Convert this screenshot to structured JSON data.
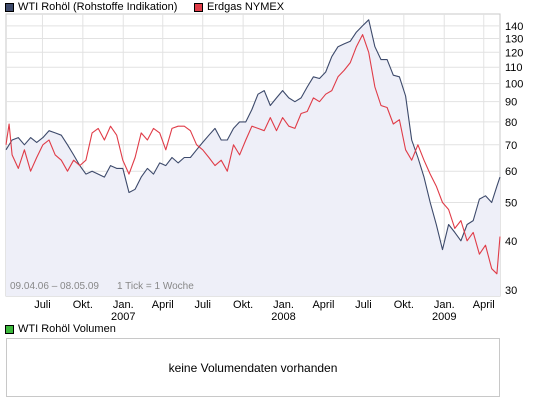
{
  "legend": {
    "series1": {
      "label": "WTI Rohöl (Rohstoffe Indikation)",
      "color": "#3d4a6b"
    },
    "series2": {
      "label": "Erdgas NYMEX",
      "color": "#e03c48"
    }
  },
  "date_range": "09.04.06 – 08.05.09",
  "tick_note": "1 Tick = 1 Woche",
  "volume": {
    "legend_label": "WTI Rohöl Volumen",
    "legend_color": "#3cb83c",
    "message": "keine Volumendaten vorhanden"
  },
  "chart_data": {
    "type": "line",
    "scale": "log",
    "x_unit": "week",
    "x_start": "2006-04-09",
    "x_end": "2009-05-08",
    "ylim": [
      29,
      150
    ],
    "y_ticks": [
      30,
      40,
      50,
      60,
      70,
      80,
      90,
      100,
      110,
      120,
      130,
      140
    ],
    "grid": true,
    "legend_position": "top-left",
    "x_ticks": [
      {
        "date": "2006-07-01",
        "label": "Juli"
      },
      {
        "date": "2006-10-01",
        "label": "Okt."
      },
      {
        "date": "2007-01-01",
        "label": "Jan."
      },
      {
        "date": "2007-04-01",
        "label": "April"
      },
      {
        "date": "2007-07-01",
        "label": "Juli"
      },
      {
        "date": "2007-10-01",
        "label": "Okt."
      },
      {
        "date": "2008-01-01",
        "label": "Jan."
      },
      {
        "date": "2008-04-01",
        "label": "April"
      },
      {
        "date": "2008-07-01",
        "label": "Juli"
      },
      {
        "date": "2008-10-01",
        "label": "Okt."
      },
      {
        "date": "2009-01-01",
        "label": "Jan."
      },
      {
        "date": "2009-04-01",
        "label": "April"
      }
    ],
    "year_labels": [
      {
        "date": "2007-01-01",
        "label": "2007"
      },
      {
        "date": "2008-01-01",
        "label": "2008"
      },
      {
        "date": "2009-01-01",
        "label": "2009"
      }
    ],
    "series": [
      {
        "name": "WTI Rohöl (Rohstoffe Indikation)",
        "color": "#3d4a6b",
        "fill": true,
        "points": [
          [
            "2006-04-09",
            68
          ],
          [
            "2006-04-23",
            72
          ],
          [
            "2006-05-07",
            73
          ],
          [
            "2006-05-21",
            70
          ],
          [
            "2006-06-04",
            73
          ],
          [
            "2006-06-18",
            71
          ],
          [
            "2006-07-02",
            73
          ],
          [
            "2006-07-16",
            76
          ],
          [
            "2006-07-30",
            75
          ],
          [
            "2006-08-13",
            74
          ],
          [
            "2006-08-27",
            70
          ],
          [
            "2006-09-10",
            66
          ],
          [
            "2006-09-24",
            62
          ],
          [
            "2006-10-08",
            59
          ],
          [
            "2006-10-22",
            60
          ],
          [
            "2006-11-05",
            59
          ],
          [
            "2006-11-19",
            58
          ],
          [
            "2006-12-03",
            62
          ],
          [
            "2006-12-17",
            61
          ],
          [
            "2006-12-31",
            61
          ],
          [
            "2007-01-14",
            53
          ],
          [
            "2007-01-28",
            54
          ],
          [
            "2007-02-11",
            58
          ],
          [
            "2007-02-25",
            61
          ],
          [
            "2007-03-11",
            59
          ],
          [
            "2007-03-25",
            63
          ],
          [
            "2007-04-08",
            62
          ],
          [
            "2007-04-22",
            65
          ],
          [
            "2007-05-06",
            63
          ],
          [
            "2007-05-20",
            65
          ],
          [
            "2007-06-03",
            65
          ],
          [
            "2007-06-17",
            68
          ],
          [
            "2007-07-01",
            71
          ],
          [
            "2007-07-15",
            74
          ],
          [
            "2007-07-29",
            77
          ],
          [
            "2007-08-12",
            72
          ],
          [
            "2007-08-26",
            72
          ],
          [
            "2007-09-09",
            77
          ],
          [
            "2007-09-23",
            80
          ],
          [
            "2007-10-07",
            80
          ],
          [
            "2007-10-21",
            86
          ],
          [
            "2007-11-04",
            94
          ],
          [
            "2007-11-18",
            96
          ],
          [
            "2007-12-02",
            88
          ],
          [
            "2007-12-16",
            92
          ],
          [
            "2007-12-30",
            96
          ],
          [
            "2008-01-13",
            92
          ],
          [
            "2008-01-27",
            90
          ],
          [
            "2008-02-10",
            92
          ],
          [
            "2008-02-24",
            98
          ],
          [
            "2008-03-09",
            104
          ],
          [
            "2008-03-23",
            103
          ],
          [
            "2008-04-06",
            107
          ],
          [
            "2008-04-20",
            117
          ],
          [
            "2008-05-04",
            124
          ],
          [
            "2008-05-18",
            126
          ],
          [
            "2008-06-01",
            128
          ],
          [
            "2008-06-15",
            135
          ],
          [
            "2008-06-29",
            140
          ],
          [
            "2008-07-13",
            145
          ],
          [
            "2008-07-27",
            124
          ],
          [
            "2008-08-10",
            115
          ],
          [
            "2008-08-24",
            115
          ],
          [
            "2008-09-07",
            105
          ],
          [
            "2008-09-21",
            104
          ],
          [
            "2008-10-05",
            93
          ],
          [
            "2008-10-19",
            72
          ],
          [
            "2008-11-02",
            65
          ],
          [
            "2008-11-16",
            58
          ],
          [
            "2008-11-30",
            50
          ],
          [
            "2008-12-14",
            44
          ],
          [
            "2008-12-28",
            38
          ],
          [
            "2009-01-11",
            44
          ],
          [
            "2009-01-25",
            42
          ],
          [
            "2009-02-08",
            40
          ],
          [
            "2009-02-22",
            44
          ],
          [
            "2009-03-08",
            45
          ],
          [
            "2009-03-22",
            51
          ],
          [
            "2009-04-05",
            52
          ],
          [
            "2009-04-19",
            50
          ],
          [
            "2009-05-01",
            55
          ],
          [
            "2009-05-08",
            58
          ]
        ]
      },
      {
        "name": "Erdgas NYMEX",
        "color": "#e03c48",
        "fill": false,
        "points": [
          [
            "2006-04-09",
            70
          ],
          [
            "2006-04-16",
            79
          ],
          [
            "2006-04-23",
            66
          ],
          [
            "2006-05-07",
            61
          ],
          [
            "2006-05-21",
            68
          ],
          [
            "2006-06-04",
            60
          ],
          [
            "2006-06-18",
            65
          ],
          [
            "2006-07-02",
            70
          ],
          [
            "2006-07-16",
            72
          ],
          [
            "2006-07-30",
            66
          ],
          [
            "2006-08-13",
            64
          ],
          [
            "2006-08-27",
            60
          ],
          [
            "2006-09-10",
            64
          ],
          [
            "2006-09-24",
            62
          ],
          [
            "2006-10-08",
            64
          ],
          [
            "2006-10-22",
            75
          ],
          [
            "2006-11-05",
            77
          ],
          [
            "2006-11-19",
            72
          ],
          [
            "2006-12-03",
            78
          ],
          [
            "2006-12-17",
            74
          ],
          [
            "2006-12-31",
            64
          ],
          [
            "2007-01-14",
            59
          ],
          [
            "2007-01-28",
            65
          ],
          [
            "2007-02-11",
            75
          ],
          [
            "2007-02-25",
            72
          ],
          [
            "2007-03-11",
            77
          ],
          [
            "2007-03-25",
            75
          ],
          [
            "2007-04-08",
            68
          ],
          [
            "2007-04-22",
            77
          ],
          [
            "2007-05-06",
            78
          ],
          [
            "2007-05-20",
            78
          ],
          [
            "2007-06-03",
            76
          ],
          [
            "2007-06-17",
            70
          ],
          [
            "2007-07-01",
            68
          ],
          [
            "2007-07-15",
            65
          ],
          [
            "2007-07-29",
            62
          ],
          [
            "2007-08-12",
            64
          ],
          [
            "2007-08-26",
            60
          ],
          [
            "2007-09-09",
            70
          ],
          [
            "2007-09-23",
            66
          ],
          [
            "2007-10-07",
            72
          ],
          [
            "2007-10-21",
            78
          ],
          [
            "2007-11-04",
            77
          ],
          [
            "2007-11-18",
            76
          ],
          [
            "2007-12-02",
            82
          ],
          [
            "2007-12-16",
            76
          ],
          [
            "2007-12-30",
            82
          ],
          [
            "2008-01-13",
            78
          ],
          [
            "2008-01-27",
            77
          ],
          [
            "2008-02-10",
            84
          ],
          [
            "2008-02-24",
            85
          ],
          [
            "2008-03-09",
            92
          ],
          [
            "2008-03-23",
            90
          ],
          [
            "2008-04-06",
            94
          ],
          [
            "2008-04-20",
            96
          ],
          [
            "2008-05-04",
            104
          ],
          [
            "2008-05-18",
            108
          ],
          [
            "2008-06-01",
            113
          ],
          [
            "2008-06-15",
            124
          ],
          [
            "2008-06-29",
            133
          ],
          [
            "2008-07-13",
            120
          ],
          [
            "2008-07-27",
            98
          ],
          [
            "2008-08-10",
            88
          ],
          [
            "2008-08-24",
            87
          ],
          [
            "2008-09-07",
            79
          ],
          [
            "2008-09-21",
            81
          ],
          [
            "2008-10-05",
            68
          ],
          [
            "2008-10-19",
            64
          ],
          [
            "2008-11-02",
            70
          ],
          [
            "2008-11-16",
            64
          ],
          [
            "2008-11-30",
            59
          ],
          [
            "2008-12-14",
            55
          ],
          [
            "2008-12-28",
            50
          ],
          [
            "2009-01-11",
            48
          ],
          [
            "2009-01-25",
            43
          ],
          [
            "2009-02-08",
            45
          ],
          [
            "2009-02-22",
            40
          ],
          [
            "2009-03-08",
            42
          ],
          [
            "2009-03-22",
            37
          ],
          [
            "2009-04-05",
            39
          ],
          [
            "2009-04-19",
            34
          ],
          [
            "2009-05-01",
            33
          ],
          [
            "2009-05-08",
            41
          ]
        ]
      }
    ]
  }
}
